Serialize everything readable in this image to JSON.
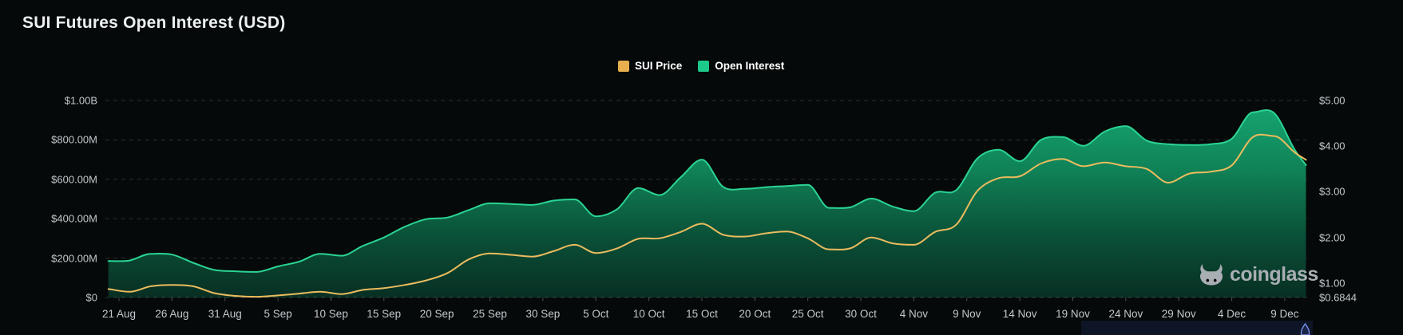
{
  "header": {
    "title": "SUI Futures Open Interest (USD)"
  },
  "legend": {
    "items": [
      {
        "label": "SUI Price",
        "color": "#E7AF4E"
      },
      {
        "label": "Open Interest",
        "color": "#1DC98A"
      }
    ]
  },
  "watermark": {
    "text": "coinglass"
  },
  "axes": {
    "left": {
      "labels": [
        "$1.00B",
        "$800.00M",
        "$600.00M",
        "$400.00M",
        "$200.00M",
        "$0"
      ]
    },
    "right": {
      "labels": [
        "$5.00",
        "$4.00",
        "$3.00",
        "$2.00",
        "$1.00"
      ],
      "min_label": "$0.6844"
    },
    "x": {
      "labels": [
        "21 Aug",
        "26 Aug",
        "31 Aug",
        "5 Sep",
        "10 Sep",
        "15 Sep",
        "20 Sep",
        "25 Sep",
        "30 Sep",
        "5 Oct",
        "10 Oct",
        "15 Oct",
        "20 Oct",
        "25 Oct",
        "30 Oct",
        "4 Nov",
        "9 Nov",
        "14 Nov",
        "19 Nov",
        "24 Nov",
        "29 Nov",
        "4 Dec",
        "9 Dec"
      ]
    }
  },
  "chart_data": {
    "type": "area",
    "title": "SUI Futures Open Interest (USD)",
    "legend_position": "top-center",
    "grid": "horizontal-dashed",
    "x_dates": [
      "2024-08-20",
      "2024-08-22",
      "2024-08-24",
      "2024-08-26",
      "2024-08-28",
      "2024-08-30",
      "2024-09-01",
      "2024-09-03",
      "2024-09-05",
      "2024-09-07",
      "2024-09-09",
      "2024-09-11",
      "2024-09-13",
      "2024-09-15",
      "2024-09-17",
      "2024-09-19",
      "2024-09-21",
      "2024-09-23",
      "2024-09-25",
      "2024-09-27",
      "2024-09-29",
      "2024-10-01",
      "2024-10-03",
      "2024-10-05",
      "2024-10-07",
      "2024-10-09",
      "2024-10-11",
      "2024-10-13",
      "2024-10-15",
      "2024-10-17",
      "2024-10-19",
      "2024-10-21",
      "2024-10-23",
      "2024-10-25",
      "2024-10-27",
      "2024-10-29",
      "2024-10-31",
      "2024-11-02",
      "2024-11-04",
      "2024-11-06",
      "2024-11-08",
      "2024-11-10",
      "2024-11-12",
      "2024-11-14",
      "2024-11-16",
      "2024-11-18",
      "2024-11-20",
      "2024-11-22",
      "2024-11-24",
      "2024-11-26",
      "2024-11-28",
      "2024-11-30",
      "2024-12-02",
      "2024-12-04",
      "2024-12-06",
      "2024-12-08",
      "2024-12-10",
      "2024-12-11"
    ],
    "series": [
      {
        "name": "Open Interest",
        "type": "area",
        "axis": "left",
        "color": "#2BD494",
        "unit": "USD millions",
        "values": [
          185,
          188,
          222,
          218,
          176,
          140,
          133,
          130,
          158,
          182,
          222,
          212,
          262,
          305,
          360,
          398,
          406,
          444,
          478,
          475,
          470,
          492,
          498,
          412,
          448,
          556,
          520,
          610,
          700,
          562,
          552,
          560,
          566,
          572,
          455,
          458,
          502,
          462,
          438,
          532,
          545,
          706,
          750,
          692,
          800,
          815,
          770,
          842,
          870,
          796,
          778,
          774,
          778,
          806,
          940,
          936,
          745,
          672
        ]
      },
      {
        "name": "SUI Price",
        "type": "line",
        "axis": "right",
        "color": "#EBBC5E",
        "unit": "USD",
        "values": [
          0.87,
          0.81,
          0.93,
          0.96,
          0.93,
          0.78,
          0.72,
          0.7,
          0.73,
          0.77,
          0.81,
          0.76,
          0.85,
          0.89,
          0.96,
          1.06,
          1.22,
          1.52,
          1.65,
          1.62,
          1.58,
          1.7,
          1.84,
          1.66,
          1.76,
          1.97,
          1.98,
          2.12,
          2.3,
          2.06,
          2.02,
          2.09,
          2.13,
          1.98,
          1.74,
          1.76,
          2.0,
          1.87,
          1.84,
          2.12,
          2.28,
          3.02,
          3.3,
          3.34,
          3.62,
          3.72,
          3.56,
          3.64,
          3.56,
          3.5,
          3.2,
          3.4,
          3.44,
          3.58,
          4.2,
          4.22,
          3.85,
          3.7
        ]
      }
    ],
    "left_axis": {
      "title": "Open Interest",
      "min": 0,
      "max": 1000000000,
      "tick_step": 200000000,
      "tick_labels": [
        "$0",
        "$200.00M",
        "$400.00M",
        "$600.00M",
        "$800.00M",
        "$1.00B"
      ]
    },
    "right_axis": {
      "title": "SUI Price",
      "min": 0.6844,
      "max": 5.0,
      "tick_labels": [
        "$0.6844",
        "$1.00",
        "$2.00",
        "$3.00",
        "$4.00",
        "$5.00"
      ]
    },
    "x_range": [
      "2024-08-20",
      "2024-12-11"
    ]
  },
  "colors": {
    "background": "#060909",
    "grid": "rgba(255,255,255,0.16)",
    "axis_text": "#c3c8ce",
    "oi_line": "#2BD494",
    "oi_fill_top": "#16A873",
    "oi_fill_bottom": "#082F23",
    "price_line": "#EBBC5E",
    "watermark_gray": "#a8aeb3",
    "corner_widget_accent": "#7E97F8"
  }
}
